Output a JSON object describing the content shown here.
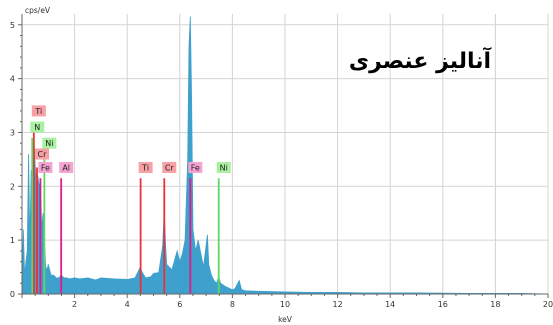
{
  "chart_data": {
    "type": "area",
    "title": "آنالیز عنصری",
    "xlabel": "keV",
    "ylabel": "cps/eV",
    "xlim": [
      0,
      20
    ],
    "ylim": [
      0,
      5.2
    ],
    "grid": true,
    "x_ticks": [
      2,
      4,
      6,
      8,
      10,
      12,
      14,
      16,
      18,
      20
    ],
    "y_ticks": [
      0,
      1,
      2,
      3,
      4,
      5
    ],
    "fill_color": "#3ea0cc",
    "spectrum": {
      "x": [
        0.0,
        0.05,
        0.1,
        0.15,
        0.2,
        0.25,
        0.3,
        0.35,
        0.4,
        0.45,
        0.5,
        0.55,
        0.6,
        0.65,
        0.7,
        0.75,
        0.8,
        0.85,
        0.9,
        0.95,
        1.0,
        1.1,
        1.2,
        1.3,
        1.4,
        1.45,
        1.5,
        1.55,
        1.6,
        1.7,
        1.8,
        2.0,
        2.2,
        2.5,
        2.8,
        3.0,
        3.5,
        4.0,
        4.3,
        4.45,
        4.5,
        4.55,
        4.7,
        4.9,
        5.0,
        5.2,
        5.35,
        5.41,
        5.45,
        5.5,
        5.7,
        5.9,
        6.0,
        6.1,
        6.2,
        6.3,
        6.35,
        6.4,
        6.45,
        6.5,
        6.6,
        6.7,
        6.9,
        7.0,
        7.05,
        7.1,
        7.2,
        7.3,
        7.4,
        7.48,
        7.55,
        7.7,
        7.9,
        8.0,
        8.1,
        8.26,
        8.35,
        8.5,
        9.0,
        10.0,
        11.0,
        12.0,
        13.0,
        14.0,
        15.0,
        16.0,
        17.0,
        18.0,
        19.0,
        20.0
      ],
      "y": [
        0.0,
        1.2,
        0.35,
        0.6,
        0.8,
        2.6,
        0.9,
        2.3,
        1.6,
        2.9,
        2.4,
        1.9,
        2.2,
        2.0,
        2.1,
        1.2,
        1.5,
        1.0,
        0.5,
        0.45,
        0.55,
        0.35,
        0.35,
        0.3,
        0.3,
        0.33,
        0.35,
        0.32,
        0.3,
        0.3,
        0.28,
        0.3,
        0.28,
        0.3,
        0.26,
        0.3,
        0.28,
        0.27,
        0.3,
        0.45,
        0.5,
        0.42,
        0.3,
        0.32,
        0.38,
        0.4,
        0.9,
        1.55,
        1.0,
        0.55,
        0.45,
        0.8,
        0.6,
        0.75,
        1.0,
        2.5,
        4.6,
        5.15,
        3.6,
        1.2,
        0.8,
        1.0,
        0.5,
        0.9,
        1.1,
        0.55,
        0.35,
        0.25,
        0.2,
        0.32,
        0.2,
        0.15,
        0.1,
        0.08,
        0.1,
        0.25,
        0.08,
        0.06,
        0.05,
        0.04,
        0.03,
        0.03,
        0.02,
        0.02,
        0.02,
        0.015,
        0.01,
        0.01,
        0.01,
        0.0
      ]
    },
    "element_markers": [
      {
        "symbol": "Ti",
        "x": 0.45,
        "line_height": 3.15,
        "color": "#e8313a",
        "box_color": "#f7a0a6",
        "label_y": 3.4
      },
      {
        "symbol": "N",
        "x": 0.39,
        "line_height": 2.9,
        "color": "#60d860",
        "box_color": "#a9f0a0",
        "label_y": 3.1
      },
      {
        "symbol": "Ni",
        "x": 0.85,
        "line_height": 2.6,
        "color": "#60d860",
        "box_color": "#a9f0a0",
        "label_y": 2.8
      },
      {
        "symbol": "Cr",
        "x": 0.57,
        "line_height": 2.35,
        "color": "#e8313a",
        "box_color": "#f7a0a6",
        "label_y": 2.6
      },
      {
        "symbol": "Fe",
        "x": 0.7,
        "line_height": 2.15,
        "color": "#e0198a",
        "box_color": "#f5a3d0",
        "label_y": 2.35
      },
      {
        "symbol": "Al",
        "x": 1.49,
        "line_height": 2.15,
        "color": "#e0198a",
        "box_color": "#f5a3d0",
        "label_y": 2.35
      },
      {
        "symbol": "Ti",
        "x": 4.51,
        "line_height": 2.15,
        "color": "#e8313a",
        "box_color": "#f7a0a6",
        "label_y": 2.35
      },
      {
        "symbol": "Cr",
        "x": 5.41,
        "line_height": 2.15,
        "color": "#e8313a",
        "box_color": "#f7a0a6",
        "label_y": 2.35
      },
      {
        "symbol": "Fe",
        "x": 6.4,
        "line_height": 2.15,
        "color": "#e0198a",
        "box_color": "#f5a3d0",
        "label_y": 2.35
      },
      {
        "symbol": "Ni",
        "x": 7.48,
        "line_height": 2.15,
        "color": "#60d860",
        "box_color": "#a9f0a0",
        "label_y": 2.35
      }
    ]
  }
}
